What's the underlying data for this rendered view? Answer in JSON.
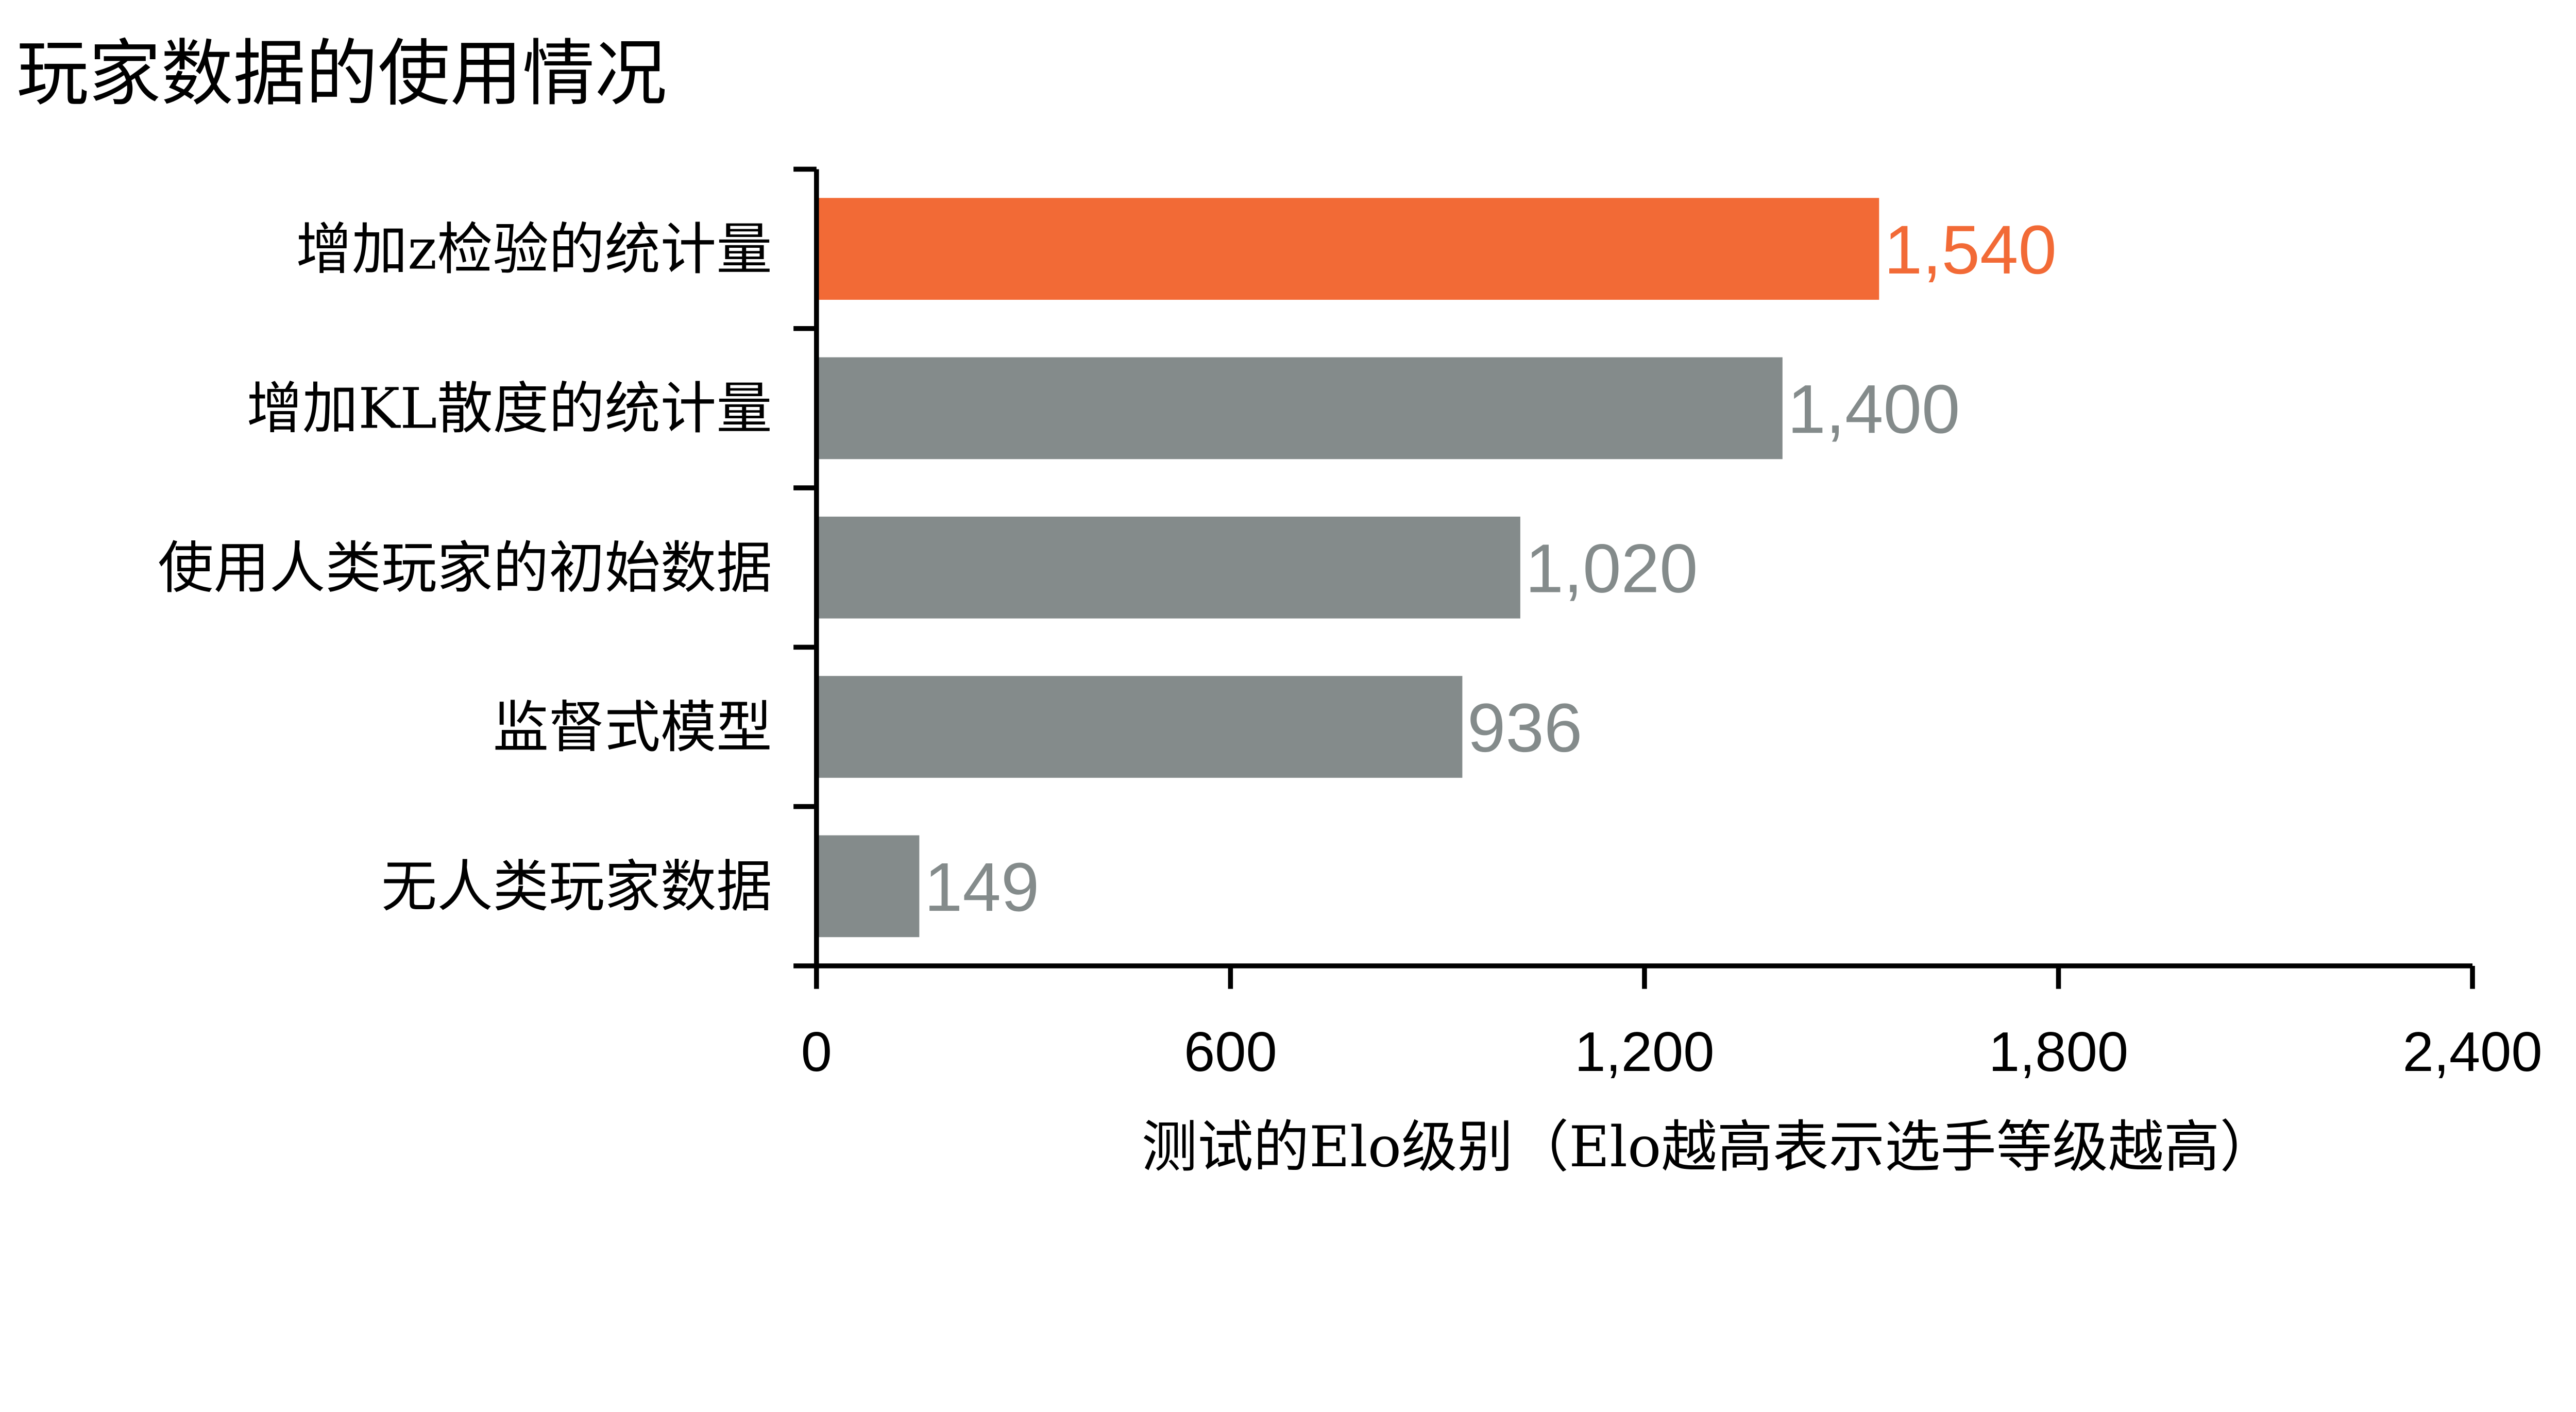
{
  "chart_data": {
    "type": "bar",
    "orientation": "horizontal",
    "title": "玩家数据的使用情况",
    "xlabel": "测试的Elo级别（Elo越高表示选手等级越高）",
    "ylabel": "",
    "categories": [
      "增加z检验的统计量",
      "增加KL散度的统计量",
      "使用人类玩家的初始数据",
      "监督式模型",
      "无人类玩家数据"
    ],
    "values": [
      1540,
      1400,
      1020,
      936,
      149
    ],
    "value_labels": [
      "1,540",
      "1,400",
      "1,020",
      "936",
      "149"
    ],
    "highlight_index": 0,
    "xlim": [
      0,
      2400
    ],
    "xticks": [
      0,
      600,
      1200,
      1800,
      2400
    ],
    "xtick_labels": [
      "0",
      "600",
      "1,200",
      "1,800",
      "2,400"
    ],
    "grid": false,
    "legend": "none",
    "colors": {
      "highlight": "#F26A36",
      "default": "#848B8B",
      "axis": "#000000"
    }
  }
}
